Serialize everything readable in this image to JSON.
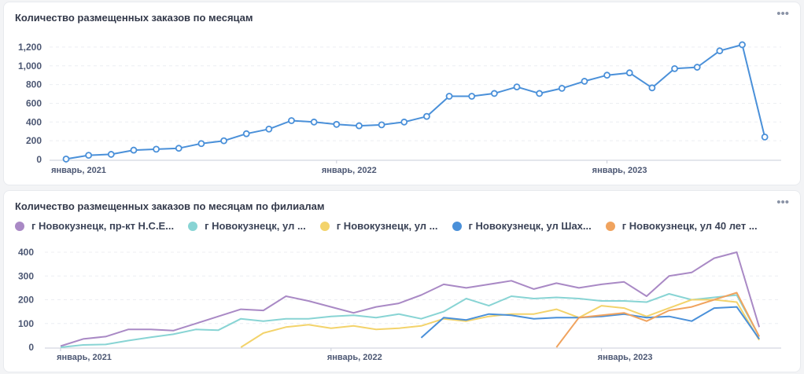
{
  "dashboard": {
    "cards": [
      {
        "title": "Количество размещенных заказов по месяцам",
        "more_icon": "•••"
      },
      {
        "title": "Количество размещенных заказов по месяцам по филиалам",
        "more_icon": "•••"
      }
    ]
  },
  "chart_data": [
    {
      "type": "line",
      "title": "Количество размещенных заказов по месяцам",
      "x_tick_labels": [
        "январь, 2021",
        "январь, 2022",
        "январь, 2023"
      ],
      "y_ticks": [
        0,
        200,
        400,
        600,
        800,
        "1,000",
        "1,200"
      ],
      "ylim": [
        0,
        1300
      ],
      "grid": true,
      "markers": true,
      "series": [
        {
          "color": "#4a90d9",
          "values": [
            5,
            45,
            55,
            100,
            110,
            120,
            170,
            200,
            275,
            325,
            415,
            400,
            375,
            360,
            370,
            400,
            460,
            675,
            675,
            705,
            775,
            705,
            760,
            835,
            900,
            925,
            765,
            970,
            985,
            1160,
            1225,
            240
          ]
        }
      ]
    },
    {
      "type": "line",
      "title": "Количество размещенных заказов по месяцам по филиалам",
      "x_tick_labels": [
        "январь, 2021",
        "январь, 2022",
        "январь, 2023"
      ],
      "y_ticks": [
        0,
        100,
        200,
        300,
        400
      ],
      "ylim": [
        0,
        420
      ],
      "grid": true,
      "legend_placement": "top",
      "series": [
        {
          "name": "г Новокузнецк, пр-кт Н.С.Е...",
          "color": "#a989c5",
          "values": [
            5,
            35,
            45,
            75,
            75,
            70,
            100,
            130,
            160,
            155,
            215,
            195,
            170,
            145,
            170,
            185,
            220,
            265,
            250,
            265,
            280,
            245,
            270,
            250,
            265,
            275,
            215,
            300,
            315,
            375,
            400,
            85
          ]
        },
        {
          "name": "г Новокузнецк, ул ...",
          "color": "#88d4d4",
          "values": [
            0,
            10,
            12,
            28,
            42,
            55,
            75,
            72,
            120,
            110,
            120,
            120,
            130,
            135,
            125,
            140,
            120,
            150,
            205,
            175,
            215,
            205,
            210,
            205,
            195,
            195,
            190,
            225,
            200,
            210,
            220,
            45
          ]
        },
        {
          "name": "г Новокузнецк, ул ...",
          "color": "#f3d36b",
          "values": [
            null,
            null,
            null,
            null,
            null,
            null,
            null,
            null,
            0,
            60,
            85,
            95,
            80,
            90,
            75,
            80,
            90,
            120,
            110,
            130,
            140,
            140,
            160,
            125,
            175,
            165,
            130,
            165,
            200,
            200,
            190,
            30
          ]
        },
        {
          "name": "г Новокузнецк, ул Шах...",
          "color": "#4a90d9",
          "values": [
            null,
            null,
            null,
            null,
            null,
            null,
            null,
            null,
            null,
            null,
            null,
            null,
            null,
            null,
            null,
            null,
            40,
            125,
            115,
            140,
            135,
            120,
            125,
            125,
            130,
            140,
            125,
            130,
            110,
            165,
            170,
            35
          ]
        },
        {
          "name": "г Новокузнецк, ул 40 лет ...",
          "color": "#f0a35e",
          "values": [
            null,
            null,
            null,
            null,
            null,
            null,
            null,
            null,
            null,
            null,
            null,
            null,
            null,
            null,
            null,
            null,
            null,
            null,
            null,
            null,
            null,
            null,
            0,
            125,
            135,
            145,
            110,
            155,
            170,
            200,
            230,
            45
          ]
        }
      ]
    }
  ]
}
